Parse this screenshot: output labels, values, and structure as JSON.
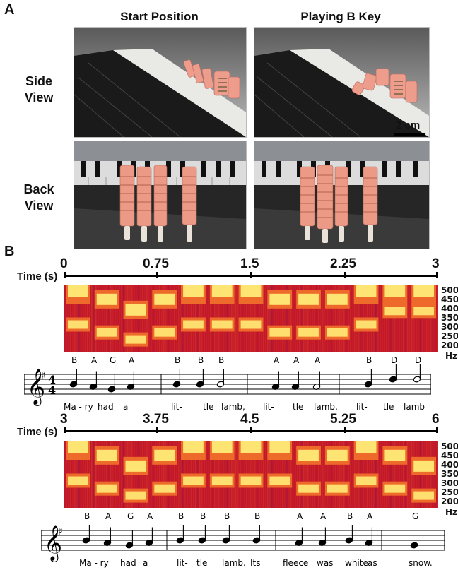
{
  "panel_a": {
    "label": "A",
    "col_headers": [
      "Start Position",
      "Playing B Key"
    ],
    "row_labels": [
      "Side\nView",
      "Back\nView"
    ],
    "scale_bar": "2 cm"
  },
  "panel_b": {
    "label": "B",
    "time_label": "Time (s)",
    "hz_unit": "Hz",
    "hz_ticks": [
      "500",
      "450",
      "400",
      "350",
      "300",
      "250",
      "200"
    ],
    "rows": [
      {
        "time_ticks": [
          "0",
          "0.75",
          "1.5",
          "2.25",
          "3"
        ],
        "notes": [
          "B",
          "A",
          "G",
          "A",
          "B",
          "B",
          "B",
          "A",
          "A",
          "A",
          "B",
          "D",
          "D"
        ],
        "lyrics": [
          "Ma - ry",
          "had",
          "a",
          "lit-",
          "tle",
          "lamb,",
          "lit-",
          "tle",
          "lamb,",
          "lit-",
          "tle",
          "lamb"
        ]
      },
      {
        "time_ticks": [
          "3",
          "3.75",
          "4.5",
          "5.25",
          "6"
        ],
        "notes": [
          "B",
          "A",
          "G",
          "A",
          "B",
          "B",
          "B",
          "B",
          "A",
          "A",
          "B",
          "A",
          "G"
        ],
        "lyrics": [
          "Ma - ry",
          "had",
          "a",
          "lit-",
          "tle",
          "lamb.",
          "Its",
          "fleece",
          "was",
          "white",
          "as",
          "snow."
        ]
      }
    ]
  },
  "chart_data": [
    {
      "type": "heatmap",
      "xlabel": "Time (s)",
      "ylabel": "Hz",
      "xlim": [
        0,
        3
      ],
      "ylim": [
        200,
        500
      ],
      "x_ticks": [
        0,
        0.75,
        1.5,
        2.25,
        3
      ],
      "y_ticks": [
        500,
        450,
        400,
        350,
        300,
        250,
        200
      ],
      "notes": [
        "B",
        "A",
        "G",
        "A",
        "B",
        "B",
        "B",
        "A",
        "A",
        "A",
        "B",
        "D",
        "D"
      ]
    },
    {
      "type": "heatmap",
      "xlabel": "Time (s)",
      "ylabel": "Hz",
      "xlim": [
        3,
        6
      ],
      "ylim": [
        200,
        500
      ],
      "x_ticks": [
        3,
        3.75,
        4.5,
        5.25,
        6
      ],
      "y_ticks": [
        500,
        450,
        400,
        350,
        300,
        250,
        200
      ],
      "notes": [
        "B",
        "A",
        "G",
        "A",
        "B",
        "B",
        "B",
        "B",
        "A",
        "A",
        "B",
        "A",
        "G"
      ]
    }
  ],
  "colors": {
    "spec_low": "#c2182a",
    "spec_mid": "#ee6a2a",
    "spec_high": "#fff27a",
    "finger": "#e99886"
  }
}
